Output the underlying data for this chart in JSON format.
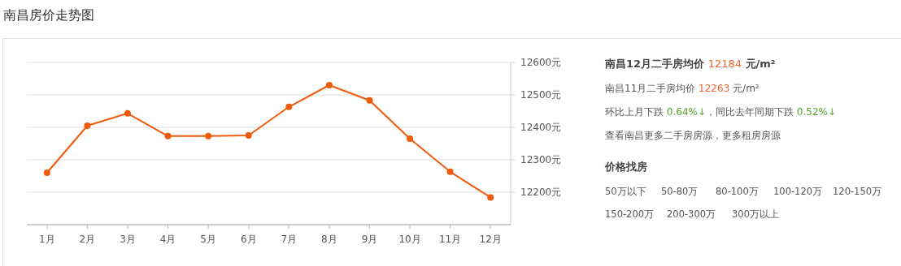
{
  "chart_data": [
    {
      "type": "line",
      "title": "南昌房价走势图",
      "categories": [
        "1月",
        "2月",
        "3月",
        "4月",
        "5月",
        "6月",
        "7月",
        "8月",
        "9月",
        "10月",
        "11月",
        "12月"
      ],
      "series": [
        {
          "color": "#f05a0a",
          "values": [
            12260,
            12405,
            12443,
            12373,
            12373,
            12375,
            12463,
            12530,
            12483,
            12365,
            12263,
            12184
          ]
        }
      ],
      "ylim": [
        12100,
        12600
      ],
      "yticks": [
        {
          "value": 12200,
          "label": "12200元"
        },
        {
          "value": 12300,
          "label": "12300元"
        },
        {
          "value": 12400,
          "label": "12400元"
        },
        {
          "value": 12500,
          "label": "12500元"
        },
        {
          "value": 12600,
          "label": "12600元"
        }
      ],
      "grid": "y",
      "marker": "circle",
      "line_style": "solid"
    },
    {
      "type": "other",
      "title": "南昌12月二手房均价 12184 元/m²",
      "annotations": [
        "南昌11月二手房均价 12263 元/m²",
        "环比上月下跌 0.64%↓，同比去年同期下跌 0.52%↓",
        "查看南昌更多二手房房源，更多租房房源",
        "价格找房",
        "50万以下",
        "50-80万",
        "80-100万",
        "100-120万",
        "120-150万",
        "150-200万",
        "200-300万",
        "300万以上"
      ]
    }
  ]
}
